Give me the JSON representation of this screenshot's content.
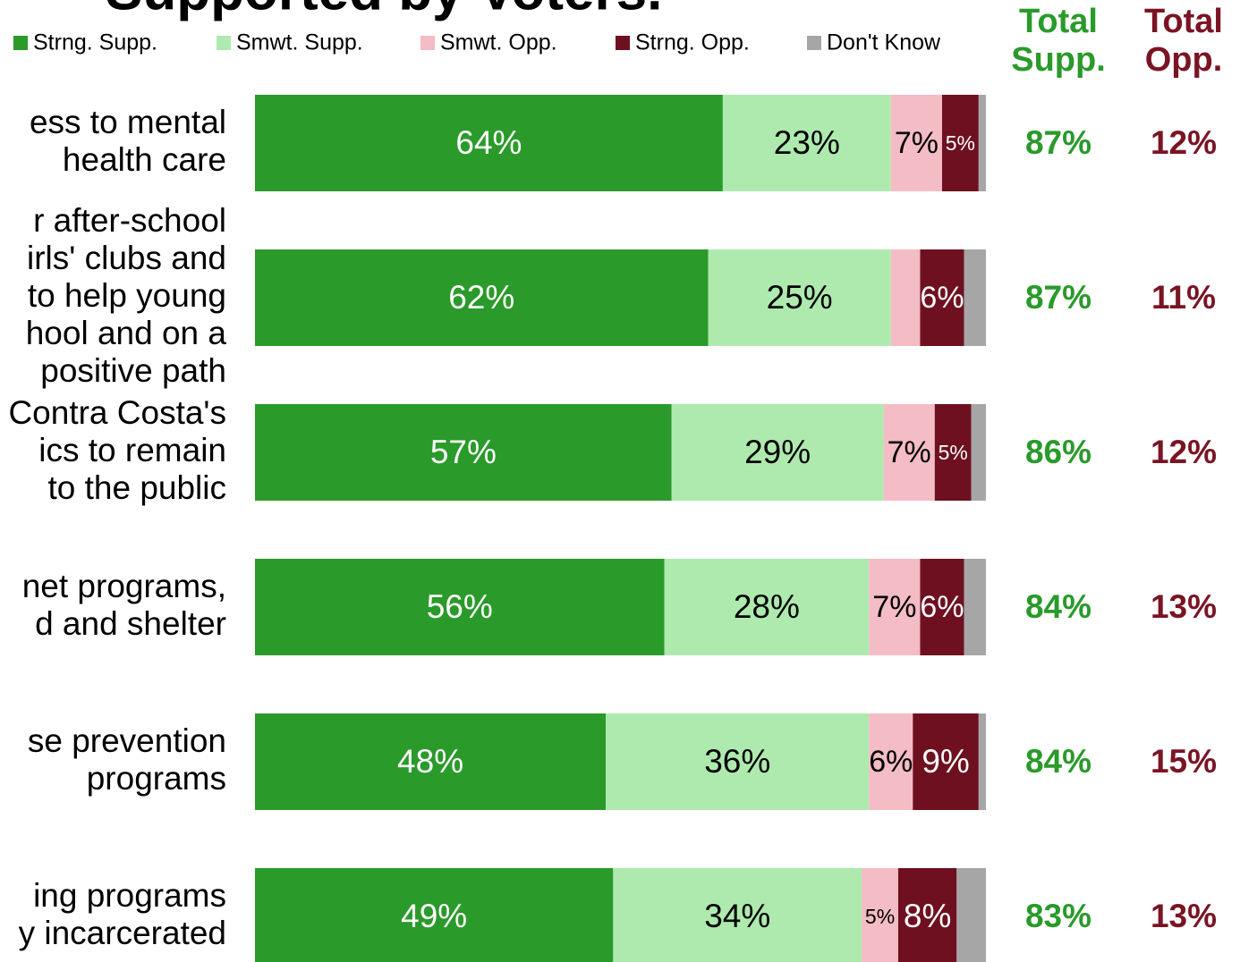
{
  "chart_data": {
    "type": "stacked_bar_horizontal",
    "title": "Supported by Voters.",
    "categories": [
      [
        "ess to mental",
        "health care"
      ],
      [
        "r after-school",
        "irls' clubs and",
        "to help young",
        "hool and on a",
        "positive path"
      ],
      [
        "Contra Costa's",
        "ics to remain",
        "to the public"
      ],
      [
        "net programs,",
        "d and shelter"
      ],
      [
        "se prevention",
        "programs"
      ],
      [
        "ing programs",
        "y incarcerated"
      ]
    ],
    "xlim": [
      0,
      100
    ],
    "series": [
      {
        "name": "Strng. Supp.",
        "color": "#2a9a2a",
        "values": [
          64,
          62,
          57,
          56,
          48,
          49
        ],
        "value_labels": [
          "64%",
          "62%",
          "57%",
          "56%",
          "48%",
          "49%"
        ]
      },
      {
        "name": "Smwt. Supp.",
        "color": "#aeeaae",
        "values": [
          23,
          25,
          29,
          28,
          36,
          34
        ],
        "value_labels": [
          "23%",
          "25%",
          "29%",
          "28%",
          "36%",
          "34%"
        ]
      },
      {
        "name": "Smwt. Opp.",
        "color": "#f4bcc4",
        "values": [
          7,
          4,
          7,
          7,
          6,
          5
        ],
        "value_labels": [
          "7%",
          null,
          "7%",
          "7%",
          "6%",
          "5%"
        ]
      },
      {
        "name": "Strng. Opp.",
        "color": "#6e1020",
        "values": [
          5,
          6,
          5,
          6,
          9,
          8
        ],
        "value_labels": [
          "5%",
          "6%",
          "5%",
          "6%",
          "9%",
          "8%"
        ]
      },
      {
        "name": "Don't Know",
        "color": "#a6a6a6",
        "values": [
          1,
          3,
          2,
          3,
          1,
          4
        ],
        "value_labels": [
          null,
          null,
          null,
          null,
          null,
          null
        ]
      }
    ],
    "totals": [
      {
        "header": [
          "Total",
          "Supp."
        ],
        "color": "#2a9a2a",
        "values": [
          87,
          87,
          86,
          84,
          84,
          83
        ],
        "value_labels": [
          "87%",
          "87%",
          "86%",
          "84%",
          "84%",
          "83%"
        ]
      },
      {
        "header": [
          "Total",
          "Opp."
        ],
        "color": "#7a1424",
        "values": [
          12,
          11,
          12,
          13,
          15,
          13
        ],
        "value_labels": [
          "12%",
          "11%",
          "12%",
          "13%",
          "15%",
          "13%"
        ]
      }
    ]
  }
}
